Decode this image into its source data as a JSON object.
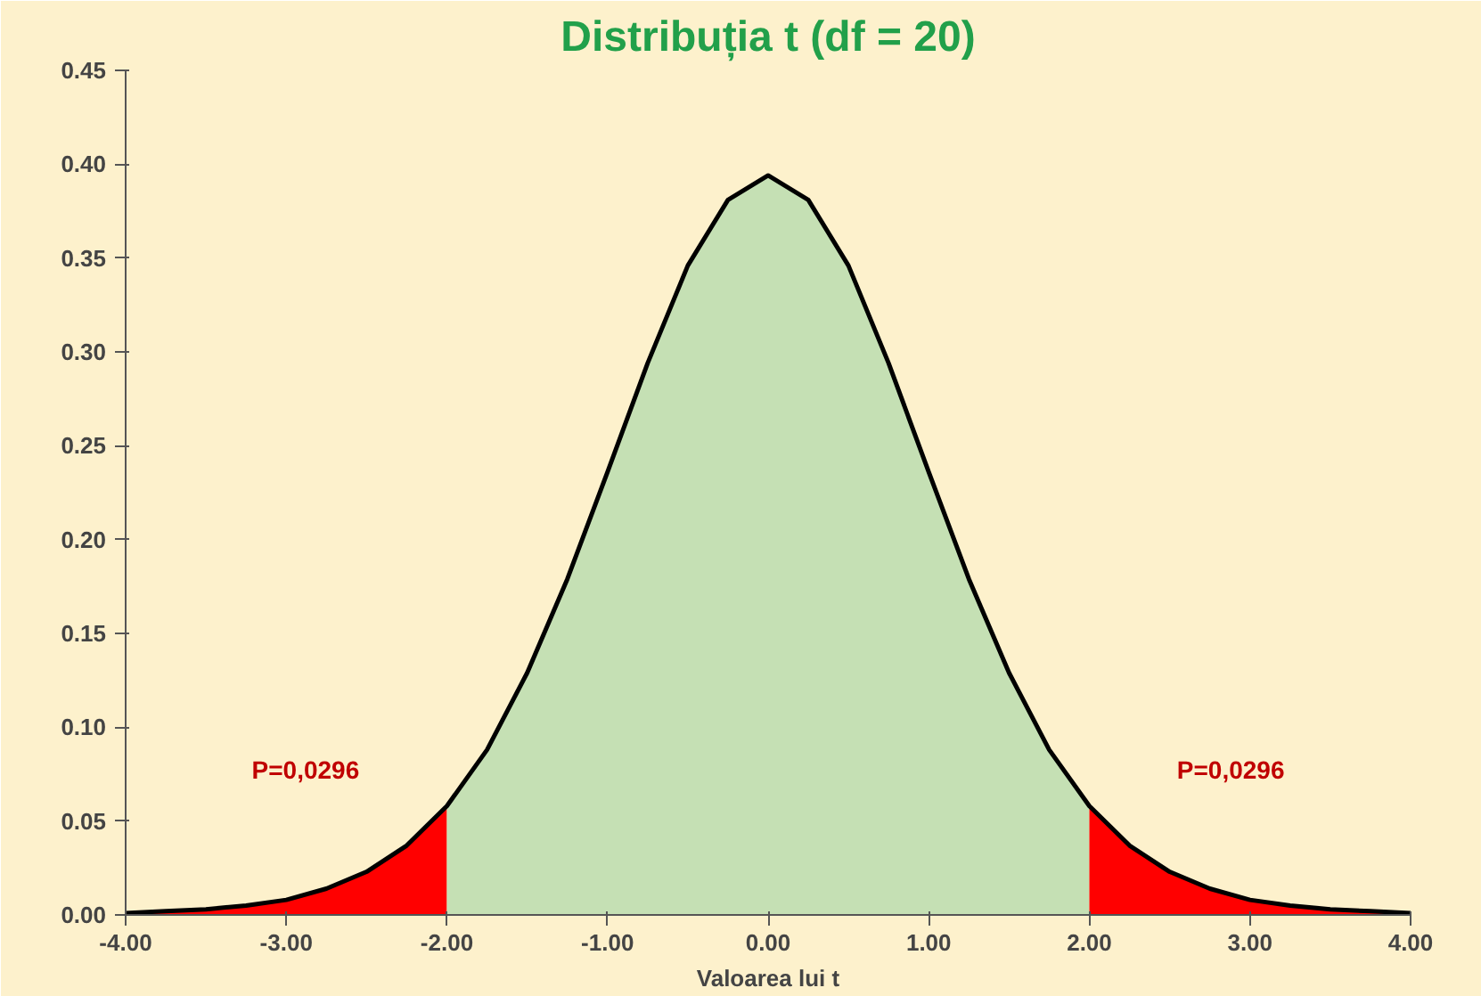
{
  "chart_data": {
    "type": "area",
    "title": "Distribuția t (df = 20)",
    "xlabel": "Valoarea lui t",
    "xlim": [
      -4,
      4
    ],
    "xticks": [
      {
        "value": -4,
        "label": "-4.00"
      },
      {
        "value": -3,
        "label": "-3.00"
      },
      {
        "value": -2,
        "label": "-2.00"
      },
      {
        "value": -1,
        "label": "-1.00"
      },
      {
        "value": 0,
        "label": "0.00"
      },
      {
        "value": 1,
        "label": "1.00"
      },
      {
        "value": 2,
        "label": "2.00"
      },
      {
        "value": 3,
        "label": "3.00"
      },
      {
        "value": 4,
        "label": "4.00"
      }
    ],
    "ylim": [
      0,
      0.45
    ],
    "yticks": [
      {
        "value": 0,
        "label": "0.00"
      },
      {
        "value": 0.05,
        "label": "0.05"
      },
      {
        "value": 0.1,
        "label": "0.10"
      },
      {
        "value": 0.15,
        "label": "0.15"
      },
      {
        "value": 0.2,
        "label": "0.20"
      },
      {
        "value": 0.25,
        "label": "0.25"
      },
      {
        "value": 0.3,
        "label": "0.30"
      },
      {
        "value": 0.35,
        "label": "0.35"
      },
      {
        "value": 0.4,
        "label": "0.40"
      },
      {
        "value": 0.45,
        "label": "0.45"
      }
    ],
    "grid": false,
    "series": [
      {
        "color": "#ff0000",
        "x": [
          -4,
          -3.75,
          -3.5,
          -3.25,
          -3,
          -2.75,
          -2.5,
          -2.25,
          -2
        ],
        "values": [
          0.001,
          0.002,
          0.003,
          0.005,
          0.008,
          0.014,
          0.023,
          0.037,
          0.058
        ]
      },
      {
        "color": "#c5e0b4",
        "x": [
          -2,
          -1.75,
          -1.5,
          -1.25,
          -1,
          -0.75,
          -0.5,
          -0.25,
          0,
          0.25,
          0.5,
          0.75,
          1,
          1.25,
          1.5,
          1.75,
          2
        ],
        "values": [
          0.058,
          0.088,
          0.129,
          0.179,
          0.236,
          0.294,
          0.346,
          0.381,
          0.394,
          0.381,
          0.346,
          0.294,
          0.236,
          0.179,
          0.129,
          0.088,
          0.058
        ]
      },
      {
        "color": "#ff0000",
        "x": [
          2,
          2.25,
          2.5,
          2.75,
          3,
          3.25,
          3.5,
          3.75,
          4
        ],
        "values": [
          0.058,
          0.037,
          0.023,
          0.014,
          0.008,
          0.005,
          0.003,
          0.002,
          0.001
        ]
      },
      {
        "type": "line",
        "color": "#000000",
        "x": [
          -4,
          -3.75,
          -3.5,
          -3.25,
          -3,
          -2.75,
          -2.5,
          -2.25,
          -2,
          -1.75,
          -1.5,
          -1.25,
          -1,
          -0.75,
          -0.5,
          -0.25,
          0,
          0.25,
          0.5,
          0.75,
          1,
          1.25,
          1.5,
          1.75,
          2,
          2.25,
          2.5,
          2.75,
          3,
          3.25,
          3.5,
          3.75,
          4
        ],
        "values": [
          0.001,
          0.002,
          0.003,
          0.005,
          0.008,
          0.014,
          0.023,
          0.037,
          0.058,
          0.088,
          0.129,
          0.179,
          0.236,
          0.294,
          0.346,
          0.381,
          0.394,
          0.381,
          0.346,
          0.294,
          0.236,
          0.179,
          0.129,
          0.088,
          0.058,
          0.037,
          0.023,
          0.014,
          0.008,
          0.005,
          0.003,
          0.002,
          0.001
        ]
      }
    ],
    "annotations": [
      "P=0,0296",
      "P=0,0296"
    ]
  }
}
